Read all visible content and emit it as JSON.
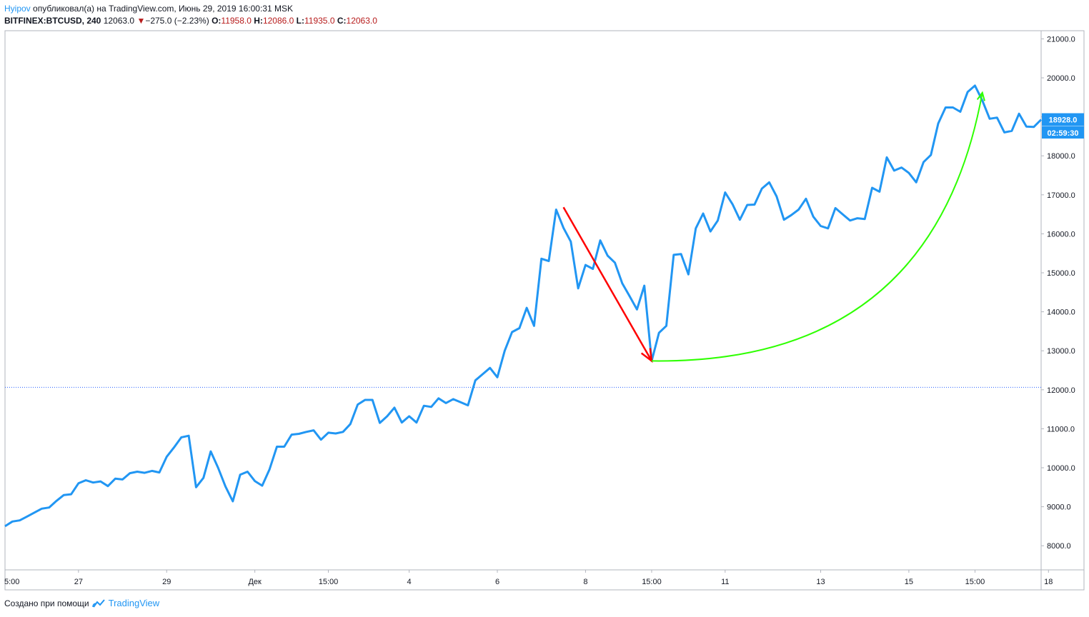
{
  "header": {
    "author": "Hyipov",
    "published_text": "опубликовал(а) на TradingView.com, Июнь 29, 2019 16:00:31 MSK",
    "symbol": "BITFINEX:BTCUSD, 240",
    "last": "12063.0",
    "change": "−275.0 (−2.23%)",
    "o_label": "O:",
    "o_value": "11958.0",
    "h_label": "H:",
    "h_value": "12086.0",
    "l_label": "L:",
    "l_value": "11935.0",
    "c_label": "C:",
    "c_value": "12063.0"
  },
  "price_label": "18928.0",
  "countdown_label": "02:59:30",
  "footer": {
    "created_text": "Создано при помощи",
    "logo_text": "TradingView"
  },
  "colors": {
    "line": "#2196f3",
    "down_arrow": "#ff0000",
    "up_curve": "#2eff00",
    "ref_line": "#2962ff",
    "price_tag": "#2196f3"
  },
  "chart_data": {
    "type": "line",
    "series": [
      {
        "values": [
          8500,
          8620,
          8650,
          8750,
          8850,
          8950,
          8980,
          9150,
          9300,
          9320,
          9600,
          9680,
          9620,
          9650,
          9530,
          9720,
          9700,
          9860,
          9900,
          9870,
          9920,
          9880,
          10280,
          10520,
          10780,
          10820,
          9500,
          9740,
          10420,
          10000,
          9520,
          9140,
          9820,
          9900,
          9660,
          9540,
          9960,
          10540,
          10540,
          10850,
          10870,
          10920,
          10960,
          10720,
          10900,
          10880,
          10920,
          11120,
          11620,
          11740,
          11740,
          11150,
          11320,
          11540,
          11160,
          11320,
          11160,
          11590,
          11560,
          11780,
          11660,
          11760,
          11680,
          11600,
          12240,
          12400,
          12560,
          12320,
          13000,
          13480,
          13580,
          14100,
          13640,
          15360,
          15300,
          16620,
          16150,
          15800,
          14600,
          15200,
          15100,
          15830,
          15440,
          15260,
          14730,
          14400,
          14060,
          14670,
          12740,
          13460,
          13640,
          15460,
          15480,
          14960,
          16140,
          16520,
          16060,
          16340,
          17060,
          16760,
          16360,
          16740,
          16750,
          17160,
          17320,
          16960,
          16360,
          16480,
          16620,
          16900,
          16440,
          16200,
          16140,
          16660,
          16500,
          16340,
          16400,
          16380,
          17180,
          17080,
          17960,
          17620,
          17700,
          17560,
          17320,
          17840,
          18020,
          18830,
          19240,
          19240,
          19130,
          19640,
          19800,
          19420,
          18950,
          18980,
          18600,
          18640,
          19080,
          18750,
          18740,
          18928
        ]
      }
    ],
    "x_ticks": [
      "5:00",
      "27",
      "29",
      "Дек",
      "15:00",
      "4",
      "6",
      "8",
      "15:00",
      "11",
      "13",
      "15",
      "15:00",
      "18"
    ],
    "y_ticks": [
      "21000.0",
      "20000.0",
      "19000.0",
      "18000.0",
      "17000.0",
      "16000.0",
      "15000.0",
      "14000.0",
      "13000.0",
      "12000.0",
      "11000.0",
      "10000.0",
      "9000.0",
      "8000.0"
    ],
    "reference_line": 12063,
    "ylim": [
      7500,
      21300
    ],
    "annotations": [
      {
        "type": "arrow",
        "from": [
          76,
          16680
        ],
        "to": [
          88,
          12740
        ]
      },
      {
        "type": "curve-arrow",
        "from": [
          88,
          12740
        ],
        "to": [
          133,
          19620
        ]
      }
    ]
  }
}
